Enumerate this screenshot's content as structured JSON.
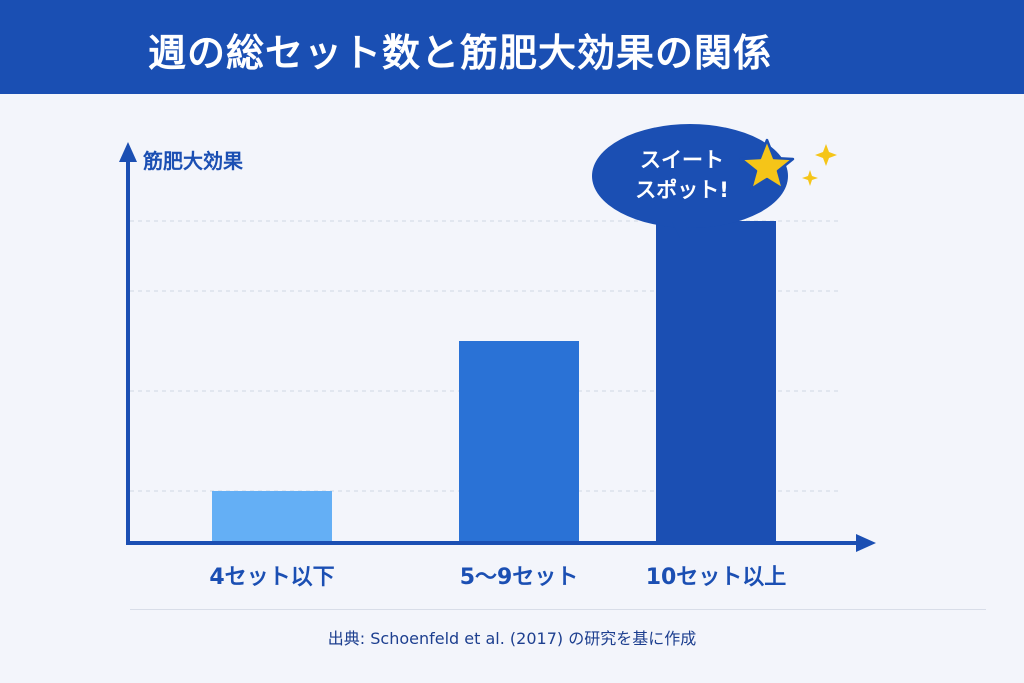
{
  "header": {
    "title": "週の総セット数と筋肥大効果の関係"
  },
  "chart_data": {
    "type": "bar",
    "title": "週の総セット数と筋肥大効果の関係",
    "ylabel": "筋肥大効果",
    "xlabel": "",
    "categories": [
      "4セット以下",
      "5〜9セット",
      "10セット以上"
    ],
    "values": [
      1,
      4,
      6.4
    ],
    "ylim": [
      0,
      8
    ],
    "colors": [
      "#64aff5",
      "#2a72d6",
      "#1b4fb3"
    ],
    "grid": true,
    "annotation": {
      "text_line1": "スイート",
      "text_line2": "スポット!",
      "target_category": "10セット以上"
    }
  },
  "footer": {
    "source": "出典: Schoenfeld et al. (2017) の研究を基に作成"
  },
  "colors": {
    "header": "#1a4fb3",
    "axis": "#1b4fb3",
    "text": "#1d3f8f",
    "star": "#f5c518"
  },
  "icons": {
    "star": "star-icon",
    "sparkle": "sparkle-icon"
  }
}
